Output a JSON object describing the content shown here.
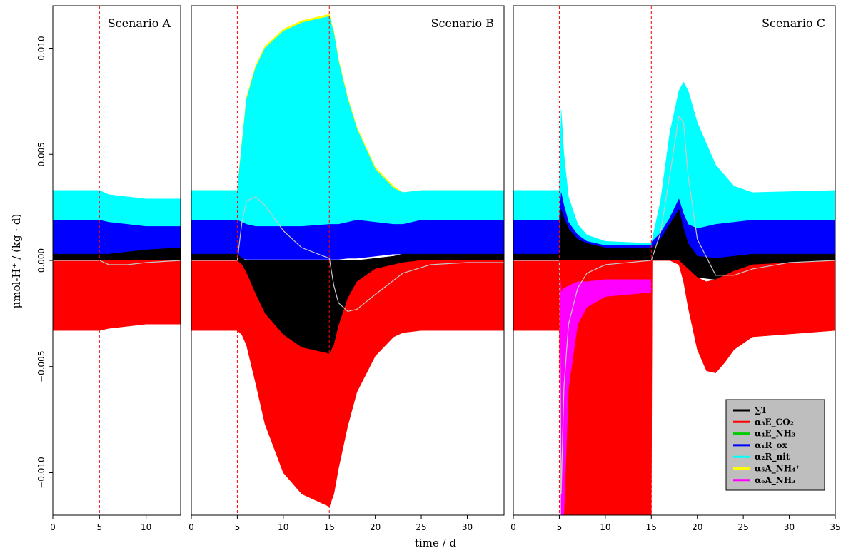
{
  "chart_data": {
    "type": "area",
    "ylabel": "μmol-H⁺ / (kg · d)",
    "xlabel": "time / d",
    "ylim": [
      -0.012,
      0.012
    ],
    "yticks": [
      -0.01,
      -0.005,
      0.0,
      0.005,
      0.01
    ],
    "ytick_labels": [
      "−0.010",
      "−0.005",
      "0.000",
      "0.005",
      "0.010"
    ],
    "colors": {
      "T": "#000000",
      "E_CO2": "#ff0000",
      "E_NH3": "#00cc00",
      "R_ox": "#0000ff",
      "R_nit": "#00ffff",
      "A_NH4": "#ffff00",
      "A_NH3": "#ff00ff",
      "net_line": "#c8c8c8",
      "event_line": "#ff0000"
    },
    "legend": {
      "placement": "bottom-right of Scenario C panel",
      "entries": [
        {
          "key": "T",
          "label": "∑T",
          "color": "#000000"
        },
        {
          "key": "E_CO2",
          "label": "α₃E_CO₂",
          "color": "#ff0000"
        },
        {
          "key": "E_NH3",
          "label": "α₄E_NH₃",
          "color": "#00cc00"
        },
        {
          "key": "R_ox",
          "label": "α₁R_ox",
          "color": "#0000ff"
        },
        {
          "key": "R_nit",
          "label": "α₂R_nit",
          "color": "#00ffff"
        },
        {
          "key": "A_NH4",
          "label": "α₅A_NH₄⁺",
          "color": "#ffff00"
        },
        {
          "key": "A_NH3",
          "label": "α₆A_NH₃",
          "color": "#ff00ff"
        }
      ]
    },
    "panels": [
      {
        "title": "Scenario A",
        "xlim": [
          0,
          13.7
        ],
        "xticks": [
          0,
          5,
          10
        ],
        "xtick_labels": [
          "0",
          "5",
          "10"
        ],
        "events": [
          5
        ],
        "series": [
          {
            "key": "R_nit",
            "x": [
              0,
              5,
              6,
              8,
              10,
              13.7
            ],
            "upper": [
              0.0033,
              0.0033,
              0.0031,
              0.003,
              0.0029,
              0.0029
            ],
            "lower": [
              0.0019,
              0.0019,
              0.0018,
              0.0017,
              0.0016,
              0.0016
            ]
          },
          {
            "key": "R_ox",
            "x": [
              0,
              5,
              6,
              8,
              10,
              13.7
            ],
            "upper": [
              0.0019,
              0.0019,
              0.0018,
              0.0017,
              0.0016,
              0.0016
            ],
            "lower": [
              0.0003,
              0.0003,
              0.0003,
              0.0004,
              0.0005,
              0.0006
            ]
          },
          {
            "key": "T",
            "x": [
              0,
              5,
              6,
              8,
              10,
              13.7
            ],
            "upper": [
              0.0003,
              0.0003,
              0.0003,
              0.0004,
              0.0005,
              0.0006
            ],
            "lower": [
              0,
              0,
              0,
              0,
              0,
              0
            ]
          },
          {
            "key": "E_CO2",
            "x": [
              0,
              5,
              6,
              8,
              10,
              13.7
            ],
            "upper": [
              0,
              0,
              0,
              0,
              0,
              0
            ],
            "lower": [
              -0.0033,
              -0.0033,
              -0.0032,
              -0.0031,
              -0.003,
              -0.003
            ]
          }
        ],
        "net": {
          "x": [
            0,
            5,
            5.5,
            6,
            7,
            8,
            10,
            13.7
          ],
          "y": [
            0,
            0,
            -0.0001,
            -0.0002,
            -0.0002,
            -0.0002,
            -0.0001,
            0
          ]
        }
      },
      {
        "title": "Scenario B",
        "xlim": [
          0,
          34
        ],
        "xticks": [
          0,
          5,
          10,
          15,
          20,
          25,
          30
        ],
        "xtick_labels": [
          "0",
          "5",
          "10",
          "15",
          "20",
          "25",
          "30"
        ],
        "events": [
          5,
          15
        ],
        "series": [
          {
            "key": "A_NH4",
            "x": [
              0,
              5,
              5.5,
              6,
              7,
              8,
              10,
              12,
              15,
              15.5,
              16,
              17,
              18,
              20,
              22,
              23,
              25,
              34
            ],
            "upper": [
              0.0033,
              0.0033,
              0.0056,
              0.0077,
              0.0092,
              0.0101,
              0.0109,
              0.0113,
              0.0116,
              0.0108,
              0.0095,
              0.0077,
              0.0063,
              0.0044,
              0.0035,
              0.0032,
              0.0033,
              0.0033
            ],
            "lower": [
              0.0033,
              0.0033,
              0.0055,
              0.0076,
              0.0091,
              0.01,
              0.0108,
              0.0112,
              0.0115,
              0.0107,
              0.0094,
              0.0076,
              0.0062,
              0.0043,
              0.0034,
              0.0032,
              0.0033,
              0.0033
            ]
          },
          {
            "key": "R_nit",
            "x": [
              0,
              5,
              5.5,
              6,
              7,
              8,
              10,
              12,
              15,
              15.5,
              16,
              17,
              18,
              20,
              22,
              23,
              25,
              34
            ],
            "upper": [
              0.0033,
              0.0033,
              0.0055,
              0.0076,
              0.0091,
              0.01,
              0.0108,
              0.0112,
              0.0115,
              0.0107,
              0.0094,
              0.0076,
              0.0062,
              0.0043,
              0.0034,
              0.0032,
              0.0033,
              0.0033
            ],
            "lower": [
              0.0019,
              0.0019,
              0.0018,
              0.0017,
              0.0016,
              0.0016,
              0.0016,
              0.0016,
              0.0017,
              0.0017,
              0.0017,
              0.0018,
              0.0019,
              0.0018,
              0.0017,
              0.0017,
              0.0019,
              0.0019
            ]
          },
          {
            "key": "R_ox",
            "x": [
              0,
              5,
              5.5,
              6,
              7,
              8,
              10,
              12,
              15,
              15.5,
              16,
              17,
              18,
              20,
              22,
              23,
              25,
              34
            ],
            "upper": [
              0.0019,
              0.0019,
              0.0018,
              0.0017,
              0.0016,
              0.0016,
              0.0016,
              0.0016,
              0.0017,
              0.0017,
              0.0017,
              0.0018,
              0.0019,
              0.0018,
              0.0017,
              0.0017,
              0.0019,
              0.0019
            ],
            "lower": [
              0.0003,
              0.0003,
              0.0001,
              5e-05,
              5e-05,
              5e-05,
              5e-05,
              5e-05,
              5e-05,
              5e-05,
              5e-05,
              0.0001,
              0.0001,
              0.0002,
              0.0003,
              0.0003,
              0.0003,
              0.0003
            ]
          },
          {
            "key": "T",
            "x": [
              0,
              5,
              5.5,
              6,
              7,
              8,
              10,
              12,
              15,
              15.5,
              16,
              17,
              18,
              20,
              22,
              23,
              25,
              34
            ],
            "upper": [
              0.0003,
              0.0003,
              0.0001,
              0,
              0,
              0,
              0,
              0,
              0,
              0,
              0,
              0,
              0,
              0.0001,
              0.0002,
              0.0003,
              0.0003,
              0.0003
            ],
            "lower": [
              0,
              0,
              -0.0002,
              -0.0006,
              -0.0016,
              -0.0025,
              -0.0035,
              -0.0041,
              -0.0044,
              -0.004,
              -0.0031,
              -0.0018,
              -0.001,
              -0.0004,
              -0.0002,
              -0.0001,
              0,
              0
            ]
          },
          {
            "key": "E_CO2",
            "x": [
              0,
              5,
              5.5,
              6,
              7,
              8,
              10,
              12,
              15,
              15.5,
              16,
              17,
              18,
              20,
              22,
              23,
              25,
              34
            ],
            "upper": [
              0,
              0,
              -0.0002,
              -0.0006,
              -0.0016,
              -0.0025,
              -0.0035,
              -0.0041,
              -0.0044,
              -0.004,
              -0.0031,
              -0.0018,
              -0.001,
              -0.0004,
              -0.0002,
              -0.0001,
              0,
              0
            ],
            "lower": [
              -0.0033,
              -0.0033,
              -0.0035,
              -0.004,
              -0.0058,
              -0.0077,
              -0.01,
              -0.011,
              -0.0116,
              -0.011,
              -0.0098,
              -0.0078,
              -0.0062,
              -0.0045,
              -0.0036,
              -0.0034,
              -0.0033,
              -0.0033
            ]
          }
        ],
        "net": {
          "x": [
            0,
            5,
            5.5,
            6,
            7,
            8,
            10,
            12,
            15,
            15.5,
            16,
            17,
            18,
            20,
            23,
            26,
            30,
            34
          ],
          "y": [
            0,
            0,
            0.0018,
            0.0028,
            0.003,
            0.0026,
            0.0014,
            0.0006,
            0.0001,
            -0.0012,
            -0.002,
            -0.0024,
            -0.0023,
            -0.0016,
            -0.0006,
            -0.0002,
            -0.0001,
            -0.0001
          ]
        }
      },
      {
        "title": "Scenario C",
        "xlim": [
          0,
          35
        ],
        "xticks": [
          0,
          5,
          10,
          15,
          20,
          25,
          30,
          35
        ],
        "xtick_labels": [
          "0",
          "5",
          "10",
          "15",
          "20",
          "25",
          "30",
          "35"
        ],
        "events": [
          5,
          15
        ],
        "series": [
          {
            "key": "R_nit",
            "x": [
              0,
              5,
              5.2,
              5.5,
              6,
              7,
              8,
              10,
              15,
              15.1,
              16,
              17,
              18,
              18.5,
              19,
              20,
              22,
              24,
              26,
              35
            ],
            "upper": [
              0.0033,
              0.0033,
              0.0071,
              0.005,
              0.003,
              0.0017,
              0.0012,
              0.0009,
              0.0008,
              0.001,
              0.0028,
              0.006,
              0.008,
              0.0084,
              0.008,
              0.0065,
              0.0045,
              0.0035,
              0.0032,
              0.0033
            ],
            "lower": [
              0.0019,
              0.0019,
              0.0032,
              0.0026,
              0.0018,
              0.0012,
              0.0009,
              0.0007,
              0.0007,
              0.0009,
              0.0013,
              0.002,
              0.0029,
              0.0022,
              0.0017,
              0.0015,
              0.0017,
              0.0018,
              0.0019,
              0.0019
            ]
          },
          {
            "key": "R_ox",
            "x": [
              0,
              5,
              5.2,
              5.5,
              6,
              7,
              8,
              10,
              15,
              15.1,
              16,
              17,
              18,
              18.5,
              19,
              20,
              22,
              24,
              26,
              35
            ],
            "upper": [
              0.0019,
              0.0019,
              0.0032,
              0.0026,
              0.0018,
              0.0012,
              0.0009,
              0.0007,
              0.0007,
              0.0009,
              0.0013,
              0.002,
              0.0029,
              0.0022,
              0.0017,
              0.0015,
              0.0017,
              0.0018,
              0.0019,
              0.0019
            ],
            "lower": [
              0.0003,
              0.0003,
              0.0024,
              0.002,
              0.0015,
              0.001,
              0.0008,
              0.0006,
              0.0006,
              0.0006,
              0.001,
              0.0017,
              0.0024,
              0.0015,
              0.0008,
              0.0002,
              0.0001,
              0.0002,
              0.0003,
              0.0003
            ]
          },
          {
            "key": "T",
            "x": [
              0,
              5,
              5.2,
              5.5,
              6,
              7,
              8,
              10,
              15,
              15.1,
              16,
              17,
              18,
              18.5,
              19,
              20,
              22,
              24,
              26,
              35
            ],
            "upper": [
              0.0003,
              0.0003,
              0.0024,
              0.002,
              0.0015,
              0.001,
              0.0008,
              0.0006,
              0.0006,
              0.0006,
              0.001,
              0.0017,
              0.0024,
              0.0015,
              0.0008,
              0.0002,
              0.0001,
              0.0002,
              0.0003,
              0.0003
            ],
            "lower": [
              0,
              0,
              0,
              0,
              0,
              0,
              0,
              0,
              0,
              0,
              0,
              0,
              0,
              -0.0002,
              -0.0004,
              -0.0008,
              -0.0009,
              -0.0005,
              -0.0002,
              0
            ]
          },
          {
            "key": "E_CO2",
            "x": [
              0,
              5,
              5.2,
              5.5,
              6,
              7,
              8,
              10,
              15,
              15.1,
              16,
              17,
              18,
              18.5,
              19,
              20,
              21,
              22,
              23,
              24,
              26,
              35
            ],
            "upper": [
              0,
              0,
              0,
              0,
              0,
              0,
              0,
              0,
              0,
              0,
              0,
              0,
              0,
              -0.0002,
              -0.0004,
              -0.0008,
              -0.001,
              -0.0009,
              -0.0007,
              -0.0005,
              -0.0002,
              0
            ],
            "lower": [
              -0.0033,
              -0.0033,
              -0.012,
              -0.012,
              -0.012,
              -0.012,
              -0.012,
              -0.012,
              -0.012,
              0,
              0,
              0,
              -0.0002,
              -0.001,
              -0.0022,
              -0.0042,
              -0.0052,
              -0.0053,
              -0.0048,
              -0.0042,
              -0.0036,
              -0.0033
            ]
          },
          {
            "key": "A_NH3",
            "x": [
              5,
              5.2,
              5.5,
              6,
              7,
              8,
              10,
              15
            ],
            "upper": [
              0,
              -0.0015,
              -0.0013,
              -0.0012,
              -0.001,
              -0.001,
              -0.0009,
              -0.0009
            ],
            "lower": [
              0,
              -0.012,
              -0.012,
              -0.006,
              -0.003,
              -0.0022,
              -0.0017,
              -0.0015
            ]
          }
        ],
        "net": {
          "x": [
            0,
            5,
            5.2,
            5.5,
            6,
            7,
            8,
            10,
            15,
            16,
            17,
            18,
            18.5,
            19,
            20,
            22,
            24,
            26,
            30,
            35
          ],
          "y": [
            0,
            0,
            -0.011,
            -0.006,
            -0.003,
            -0.0013,
            -0.0006,
            -0.0002,
            0,
            0.0013,
            0.004,
            0.0068,
            0.0065,
            0.004,
            0.001,
            -0.0007,
            -0.0007,
            -0.0004,
            -0.0001,
            0
          ]
        }
      }
    ]
  }
}
